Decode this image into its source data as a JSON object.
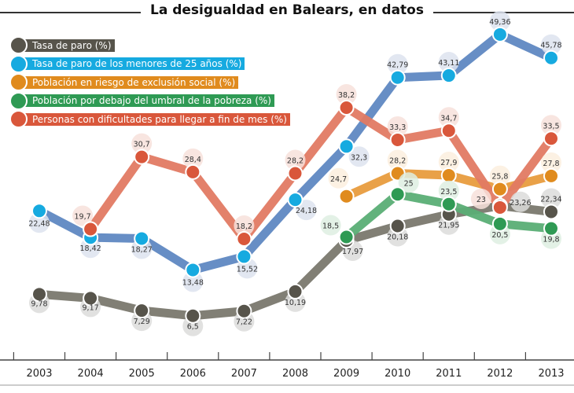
{
  "chart_data": {
    "type": "line",
    "title": "La desigualdad en Balears, en datos",
    "categories": [
      "2003",
      "2004",
      "2005",
      "2006",
      "2007",
      "2008",
      "2009",
      "2010",
      "2011",
      "2012",
      "2013"
    ],
    "ylim": [
      0,
      52
    ],
    "grid": false,
    "legend_position": "top-left",
    "series": [
      {
        "name": "Tasa de paro (%)",
        "line_color": "#7a786e",
        "dot_color": "#57544b",
        "label_bg": "#dcdcda",
        "values": [
          9.78,
          9.17,
          7.29,
          6.5,
          7.22,
          10.19,
          17.97,
          20.18,
          21.95,
          23.26,
          22.34
        ],
        "labels": [
          "9,78",
          "9,17",
          "7,29",
          "6,5",
          "7,22",
          "10,19",
          "17,97",
          "20,18",
          "21,95",
          "23,26",
          "22,34"
        ]
      },
      {
        "name": "Tasa de paro de los menores de 25 años (%)",
        "line_color": "#5f88c2",
        "dot_color": "#16aae0",
        "label_bg": "#dde3ef",
        "values": [
          22.48,
          18.42,
          18.27,
          13.48,
          15.52,
          24.18,
          32.3,
          42.79,
          43.11,
          49.36,
          45.78
        ],
        "labels": [
          "22,48",
          "18,42",
          "18,27",
          "13,48",
          "15,52",
          "24,18",
          "32,3",
          "42,79",
          "43,11",
          "49,36",
          "45,78"
        ]
      },
      {
        "name": "Población en riesgo de exclusión social (%)",
        "line_color": "#e89c3e",
        "dot_color": "#e08b1e",
        "label_bg": "#fbeede",
        "values": [
          null,
          null,
          null,
          null,
          null,
          null,
          24.7,
          28.2,
          27.9,
          25.8,
          27.8
        ],
        "labels": [
          "",
          "",
          "",
          "",
          "",
          "",
          "24,7",
          "28,2",
          "27,9",
          "25,8",
          "27,8"
        ]
      },
      {
        "name": "Población por debajo del umbral de la pobreza (%)",
        "line_color": "#5aae75",
        "dot_color": "#2f9a54",
        "label_bg": "#deeee2",
        "values": [
          null,
          null,
          null,
          null,
          null,
          null,
          18.5,
          25,
          23.5,
          20.5,
          19.8
        ],
        "labels": [
          "",
          "",
          "",
          "",
          "",
          "",
          "18,5",
          "25",
          "23,5",
          "20,5",
          "19,8"
        ]
      },
      {
        "name": "Personas con dificultades para llegar a fin de mes (%)",
        "line_color": "#e17a63",
        "dot_color": "#d9573b",
        "label_bg": "#f7e0db",
        "values": [
          null,
          19.7,
          30.7,
          28.4,
          18.2,
          28.2,
          38.2,
          33.3,
          34.7,
          23,
          33.5
        ],
        "labels": [
          "",
          "19,7",
          "30,7",
          "28,4",
          "18,2",
          "28,2",
          "38,2",
          "33,3",
          "34,7",
          "23",
          "33,5"
        ]
      }
    ]
  }
}
